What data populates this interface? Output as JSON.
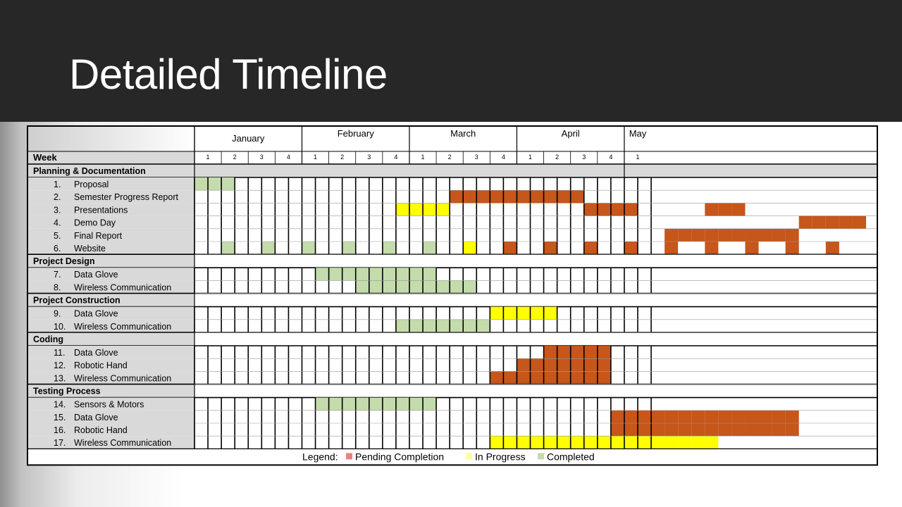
{
  "slide": {
    "title": "Detailed Timeline"
  },
  "colors": {
    "pending": "#c6561a",
    "in_progress": "#ffff00",
    "completed": "#c4dbac",
    "legend_pending": "#f08080",
    "legend_in_progress": "#ffff99",
    "legend_completed": "#c4dbac",
    "header_fill": "#d9d9d9",
    "title_bar": "#272727"
  },
  "chart_data": {
    "type": "table",
    "week_header_label": "Week",
    "months": [
      {
        "name": "January",
        "weeks": [
          "1",
          "2",
          "3",
          "4"
        ]
      },
      {
        "name": "February",
        "weeks": [
          "1",
          "2",
          "3",
          "4"
        ]
      },
      {
        "name": "March",
        "weeks": [
          "1",
          "2",
          "3",
          "4"
        ]
      },
      {
        "name": "April",
        "weeks": [
          "1",
          "2",
          "3",
          "4"
        ]
      },
      {
        "name": "May",
        "weeks": [
          "1"
        ]
      }
    ],
    "cell_units": "half-week columns",
    "sections": [
      {
        "name": "Planning & Documentation",
        "tasks": [
          {
            "num": "1.",
            "name": "Proposal",
            "cells": [
              [
                0,
                2,
                "completed"
              ]
            ]
          },
          {
            "num": "2.",
            "name": "Semester Progress Report",
            "cells": [
              [
                19,
                28,
                "pending"
              ]
            ]
          },
          {
            "num": "3.",
            "name": "Presentations",
            "cells": [
              [
                15,
                18,
                "in_progress"
              ],
              [
                29,
                32,
                "pending"
              ],
              [
                38,
                40,
                "pending"
              ]
            ]
          },
          {
            "num": "4.",
            "name": "Demo Day",
            "cells": [
              [
                45,
                49,
                "pending"
              ]
            ]
          },
          {
            "num": "5.",
            "name": "Final Report",
            "cells": [
              [
                35,
                44,
                "pending"
              ]
            ]
          },
          {
            "num": "6.",
            "name": "Website",
            "cells": [
              [
                2,
                2,
                "completed"
              ],
              [
                5,
                5,
                "completed"
              ],
              [
                8,
                8,
                "completed"
              ],
              [
                11,
                11,
                "completed"
              ],
              [
                14,
                14,
                "completed"
              ],
              [
                17,
                17,
                "completed"
              ],
              [
                20,
                20,
                "in_progress"
              ],
              [
                23,
                23,
                "pending"
              ],
              [
                26,
                26,
                "pending"
              ],
              [
                29,
                29,
                "pending"
              ],
              [
                32,
                32,
                "pending"
              ],
              [
                35,
                35,
                "pending"
              ],
              [
                38,
                38,
                "pending"
              ],
              [
                41,
                41,
                "pending"
              ],
              [
                44,
                44,
                "pending"
              ],
              [
                47,
                47,
                "pending"
              ]
            ]
          }
        ]
      },
      {
        "name": "Project Design",
        "tasks": [
          {
            "num": "7.",
            "name": "Data Glove",
            "cells": [
              [
                9,
                17,
                "completed"
              ]
            ]
          },
          {
            "num": "8.",
            "name": "Wireless Communication",
            "cells": [
              [
                12,
                20,
                "completed"
              ]
            ]
          }
        ]
      },
      {
        "name": "Project Construction",
        "tasks": [
          {
            "num": "9.",
            "name": "Data Glove",
            "cells": [
              [
                22,
                26,
                "in_progress"
              ]
            ]
          },
          {
            "num": "10.",
            "name": "Wireless Communication",
            "cells": [
              [
                15,
                21,
                "completed"
              ]
            ]
          }
        ]
      },
      {
        "name": "Coding",
        "tasks": [
          {
            "num": "11.",
            "name": "Data Glove",
            "cells": [
              [
                26,
                30,
                "pending"
              ]
            ]
          },
          {
            "num": "12.",
            "name": "Robotic Hand",
            "cells": [
              [
                24,
                30,
                "pending"
              ]
            ]
          },
          {
            "num": "13.",
            "name": "Wireless Communication",
            "cells": [
              [
                22,
                30,
                "pending"
              ]
            ]
          }
        ]
      },
      {
        "name": "Testing Process",
        "tasks": [
          {
            "num": "14.",
            "name": "Sensors & Motors",
            "cells": [
              [
                9,
                17,
                "completed"
              ]
            ]
          },
          {
            "num": "15.",
            "name": "Data Glove",
            "cells": [
              [
                31,
                44,
                "pending"
              ]
            ]
          },
          {
            "num": "16.",
            "name": "Robotic Hand",
            "cells": [
              [
                31,
                44,
                "pending"
              ]
            ]
          },
          {
            "num": "17.",
            "name": "Wireless Communication",
            "cells": [
              [
                22,
                38,
                "in_progress"
              ]
            ]
          }
        ]
      }
    ],
    "legend": {
      "title": "Legend:",
      "items": [
        {
          "label": "Pending Completion",
          "status": "legend_pending"
        },
        {
          "label": "In Progress",
          "status": "legend_in_progress"
        },
        {
          "label": "Completed",
          "status": "legend_completed"
        }
      ]
    }
  }
}
